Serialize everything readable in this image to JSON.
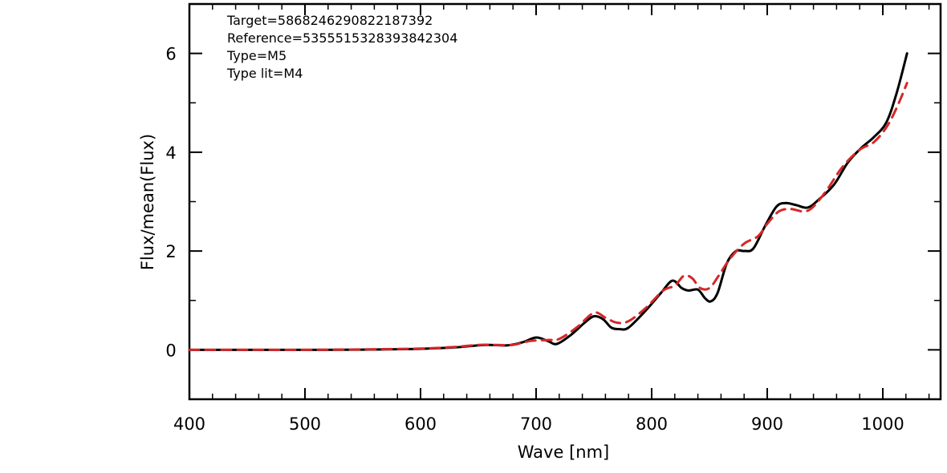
{
  "chart_data": {
    "type": "line",
    "title": "",
    "xlabel": "Wave [nm]",
    "ylabel": "Flux/mean(Flux)",
    "xlim": [
      400,
      1050
    ],
    "ylim": [
      -1,
      7
    ],
    "x_ticks": [
      400,
      500,
      600,
      700,
      800,
      900,
      1000
    ],
    "x_tick_labels": [
      "400",
      "500",
      "600",
      "700",
      "800",
      "900",
      "1000"
    ],
    "y_ticks": [
      0,
      2,
      4,
      6
    ],
    "y_tick_labels": [
      "0",
      "2",
      "4",
      "6"
    ],
    "grid": false,
    "legend": "none",
    "annotations": [
      "Target=5868246290822187392",
      "Reference=5355515328393842304",
      "Type=M5",
      "Type lit=M4"
    ],
    "series": [
      {
        "color": "#000000",
        "style": "solid",
        "points": [
          [
            400,
            0.0
          ],
          [
            450,
            0.0
          ],
          [
            500,
            0.0
          ],
          [
            550,
            0.005
          ],
          [
            600,
            0.02
          ],
          [
            630,
            0.05
          ],
          [
            650,
            0.09
          ],
          [
            660,
            0.1
          ],
          [
            675,
            0.09
          ],
          [
            688,
            0.15
          ],
          [
            700,
            0.25
          ],
          [
            710,
            0.18
          ],
          [
            718,
            0.12
          ],
          [
            730,
            0.3
          ],
          [
            742,
            0.55
          ],
          [
            750,
            0.68
          ],
          [
            758,
            0.62
          ],
          [
            765,
            0.45
          ],
          [
            772,
            0.42
          ],
          [
            780,
            0.45
          ],
          [
            795,
            0.8
          ],
          [
            808,
            1.15
          ],
          [
            818,
            1.4
          ],
          [
            826,
            1.25
          ],
          [
            832,
            1.2
          ],
          [
            840,
            1.22
          ],
          [
            846,
            1.05
          ],
          [
            851,
            0.98
          ],
          [
            857,
            1.15
          ],
          [
            865,
            1.75
          ],
          [
            873,
            2.0
          ],
          [
            880,
            2.0
          ],
          [
            888,
            2.05
          ],
          [
            898,
            2.5
          ],
          [
            908,
            2.9
          ],
          [
            916,
            2.97
          ],
          [
            925,
            2.93
          ],
          [
            935,
            2.88
          ],
          [
            945,
            3.05
          ],
          [
            958,
            3.35
          ],
          [
            970,
            3.8
          ],
          [
            982,
            4.1
          ],
          [
            992,
            4.3
          ],
          [
            1003,
            4.6
          ],
          [
            1012,
            5.2
          ],
          [
            1021,
            6.0
          ]
        ]
      },
      {
        "color": "#d62728",
        "style": "dashed",
        "points": [
          [
            400,
            0.0
          ],
          [
            450,
            0.0
          ],
          [
            500,
            0.0
          ],
          [
            550,
            0.01
          ],
          [
            600,
            0.025
          ],
          [
            630,
            0.06
          ],
          [
            650,
            0.1
          ],
          [
            665,
            0.1
          ],
          [
            680,
            0.1
          ],
          [
            695,
            0.18
          ],
          [
            710,
            0.2
          ],
          [
            720,
            0.22
          ],
          [
            735,
            0.45
          ],
          [
            750,
            0.75
          ],
          [
            760,
            0.65
          ],
          [
            770,
            0.55
          ],
          [
            780,
            0.58
          ],
          [
            795,
            0.85
          ],
          [
            810,
            1.2
          ],
          [
            820,
            1.3
          ],
          [
            828,
            1.5
          ],
          [
            835,
            1.45
          ],
          [
            842,
            1.25
          ],
          [
            850,
            1.25
          ],
          [
            858,
            1.5
          ],
          [
            868,
            1.85
          ],
          [
            880,
            2.15
          ],
          [
            892,
            2.3
          ],
          [
            900,
            2.55
          ],
          [
            910,
            2.8
          ],
          [
            920,
            2.85
          ],
          [
            932,
            2.8
          ],
          [
            940,
            2.9
          ],
          [
            952,
            3.25
          ],
          [
            965,
            3.7
          ],
          [
            980,
            4.05
          ],
          [
            992,
            4.2
          ],
          [
            1003,
            4.5
          ],
          [
            1012,
            4.9
          ],
          [
            1021,
            5.4
          ]
        ]
      }
    ]
  }
}
